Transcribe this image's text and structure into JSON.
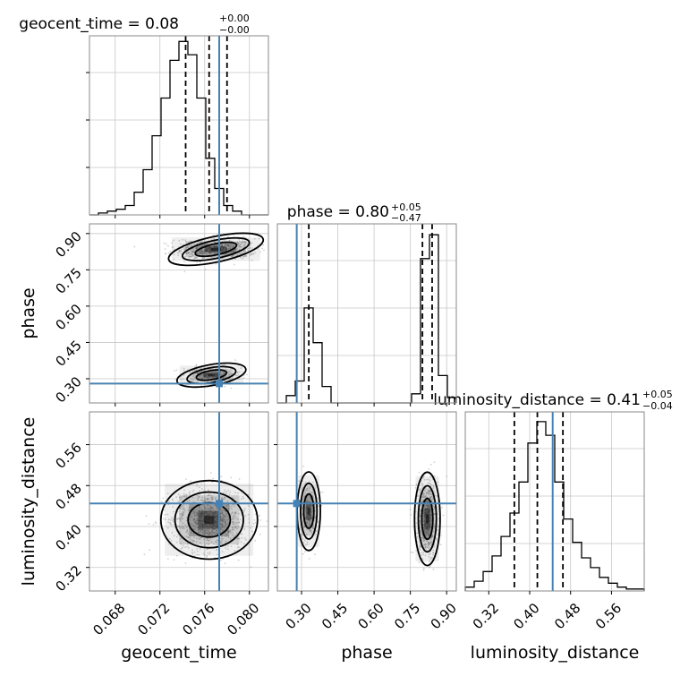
{
  "chart_data": {
    "type": "corner",
    "parameters": [
      "geocent_time",
      "phase",
      "luminosity_distance"
    ],
    "truths": [
      0.0773,
      0.28,
      0.445
    ],
    "colors": {
      "truth": "#4682b4",
      "hist": "#000000",
      "grid": "#c8c8c8",
      "scatter": "#9a9a9a"
    },
    "grid": true,
    "titles": [
      {
        "base": "geocent_time = 0.08",
        "sup": "+0.00",
        "sub": "−0.00"
      },
      {
        "base": "phase = 0.80",
        "sup": "+0.05",
        "sub": "−0.47"
      },
      {
        "base": "luminosity_distance = 0.41",
        "sup": "+0.05",
        "sub": "−0.04"
      }
    ],
    "axis_labels": {
      "x": [
        "geocent_time",
        "phase",
        "luminosity_distance"
      ],
      "y": [
        "phase",
        "luminosity_distance"
      ]
    },
    "ticks": {
      "geocent_time": [
        "0.068",
        "0.072",
        "0.076",
        "0.080"
      ],
      "phase": [
        "0.30",
        "0.45",
        "0.60",
        "0.75",
        "0.90"
      ],
      "luminosity_distance": [
        "0.32",
        "0.40",
        "0.48",
        "0.56"
      ]
    },
    "ranges": {
      "geocent_time": [
        0.0657,
        0.0817
      ],
      "phase": [
        0.2,
        0.94
      ],
      "luminosity_distance": [
        0.274,
        0.624
      ]
    },
    "quantiles": {
      "geocent_time": [
        0.0743,
        0.0764,
        0.078
      ],
      "phase": [
        0.33,
        0.8,
        0.84
      ],
      "luminosity_distance": [
        0.37,
        0.415,
        0.465
      ]
    },
    "hist1d": {
      "geocent_time": {
        "start": 0.0657,
        "step": 0.0008,
        "counts": [
          0.0,
          0.01,
          0.02,
          0.03,
          0.05,
          0.12,
          0.24,
          0.42,
          0.62,
          0.82,
          0.92,
          0.85,
          0.62,
          0.3,
          0.14,
          0.05,
          0.02,
          0.0,
          0.0,
          0.0
        ]
      },
      "phase": {
        "start": 0.2,
        "step": 0.037,
        "counts": [
          0.0,
          0.04,
          0.12,
          0.52,
          0.33,
          0.09,
          0.0,
          0.0,
          0.0,
          0.0,
          0.0,
          0.0,
          0.0,
          0.0,
          0.0,
          0.05,
          0.79,
          0.92,
          0.15,
          0.03
        ]
      },
      "luminosity_distance": {
        "start": 0.274,
        "step": 0.0175,
        "counts": [
          0.02,
          0.05,
          0.1,
          0.18,
          0.28,
          0.4,
          0.56,
          0.76,
          0.87,
          0.8,
          0.56,
          0.37,
          0.25,
          0.17,
          0.12,
          0.07,
          0.04,
          0.02,
          0.01,
          0.01
        ]
      }
    },
    "hist1d_ymax": [
      0.95,
      0.98,
      0.92
    ]
  }
}
